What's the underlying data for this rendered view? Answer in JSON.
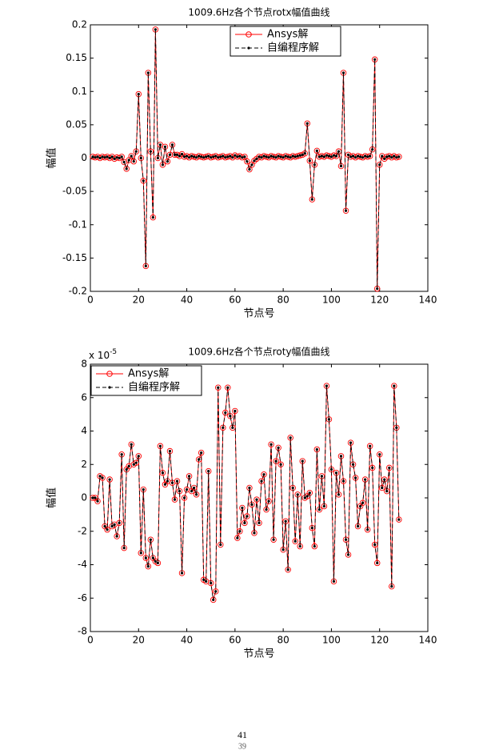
{
  "chart_data": [
    {
      "type": "line",
      "title": "1009.6Hz各个节点rotx幅值曲线",
      "x_label": "节点号",
      "y_label": "幅值",
      "x": [
        1,
        2,
        3,
        4,
        5,
        6,
        7,
        8,
        9,
        10,
        11,
        12,
        13,
        14,
        15,
        16,
        17,
        18,
        19,
        20,
        21,
        22,
        23,
        24,
        25,
        26,
        27,
        28,
        29,
        30,
        31,
        32,
        33,
        34,
        35,
        36,
        37,
        38,
        39,
        40,
        41,
        42,
        43,
        44,
        45,
        46,
        47,
        48,
        49,
        50,
        51,
        52,
        53,
        54,
        55,
        56,
        57,
        58,
        59,
        60,
        61,
        62,
        63,
        64,
        65,
        66,
        67,
        68,
        69,
        70,
        71,
        72,
        73,
        74,
        75,
        76,
        77,
        78,
        79,
        80,
        81,
        82,
        83,
        84,
        85,
        86,
        87,
        88,
        89,
        90,
        91,
        92,
        93,
        94,
        95,
        96,
        97,
        98,
        99,
        100,
        101,
        102,
        103,
        104,
        105,
        106,
        107,
        108,
        109,
        110,
        111,
        112,
        113,
        114,
        115,
        116,
        117,
        118,
        119,
        120,
        121,
        122,
        123,
        124,
        125,
        126,
        127,
        128
      ],
      "series": [
        {
          "name": "Ansys解",
          "color": "#ff0000",
          "style": "solid",
          "marker": "circle",
          "values": [
            0.002,
            0.001,
            0.002,
            0,
            0.002,
            0.001,
            0.002,
            0,
            0.002,
            -0.001,
            0.001,
            0,
            0.002,
            -0.006,
            -0.016,
            -0.003,
            0.003,
            -0.005,
            0.01,
            0.096,
            0,
            -0.034,
            -0.162,
            0.128,
            0.01,
            -0.089,
            0.193,
            0,
            0.02,
            -0.01,
            0.017,
            -0.005,
            0.005,
            0.02,
            0.005,
            0.005,
            0.003,
            0.006,
            0.002,
            0.003,
            0.001,
            0.003,
            0.002,
            0.001,
            0.003,
            0.002,
            0.001,
            0.002,
            0.003,
            0.001,
            0.002,
            0.003,
            0.001,
            0.002,
            0.003,
            0.001,
            0.002,
            0.003,
            0.001,
            0.004,
            0.002,
            0.003,
            0.001,
            0.002,
            -0.005,
            -0.017,
            -0.01,
            -0.004,
            -0.001,
            0.002,
            0.001,
            0.003,
            0.002,
            0.001,
            0.003,
            0.002,
            0.001,
            0.003,
            0.002,
            0.001,
            0.003,
            0.002,
            0.001,
            0.003,
            0.002,
            0.003,
            0.004,
            0.005,
            0.007,
            0.052,
            -0.004,
            -0.062,
            -0.01,
            0.011,
            0.002,
            0.003,
            0.002,
            0.004,
            0.003,
            0.002,
            0.004,
            0.003,
            0.01,
            -0.012,
            0.128,
            -0.079,
            0.005,
            0.002,
            0.003,
            0.001,
            0.003,
            0.002,
            0.001,
            0.003,
            0.002,
            0.003,
            0.013,
            0.148,
            -0.196,
            -0.01,
            0.003,
            -0.001,
            0.002,
            0.003,
            0.001,
            0.003,
            0.001,
            0.002
          ]
        },
        {
          "name": "自编程序解",
          "color": "#000000",
          "style": "dashed",
          "marker": "dot",
          "values": [
            0.002,
            0.001,
            0.002,
            0,
            0.002,
            0.001,
            0.002,
            0,
            0.002,
            -0.001,
            0.001,
            0,
            0.002,
            -0.006,
            -0.016,
            -0.003,
            0.003,
            -0.005,
            0.01,
            0.096,
            0,
            -0.034,
            -0.162,
            0.128,
            0.01,
            -0.089,
            0.193,
            0,
            0.02,
            -0.01,
            0.017,
            -0.005,
            0.005,
            0.02,
            0.005,
            0.005,
            0.003,
            0.006,
            0.002,
            0.003,
            0.001,
            0.003,
            0.002,
            0.001,
            0.003,
            0.002,
            0.001,
            0.002,
            0.003,
            0.001,
            0.002,
            0.003,
            0.001,
            0.002,
            0.003,
            0.001,
            0.002,
            0.003,
            0.001,
            0.004,
            0.002,
            0.003,
            0.001,
            0.002,
            -0.005,
            -0.017,
            -0.01,
            -0.004,
            -0.001,
            0.002,
            0.001,
            0.003,
            0.002,
            0.001,
            0.003,
            0.002,
            0.001,
            0.003,
            0.002,
            0.001,
            0.003,
            0.002,
            0.001,
            0.003,
            0.002,
            0.003,
            0.004,
            0.005,
            0.007,
            0.052,
            -0.004,
            -0.062,
            -0.01,
            0.011,
            0.002,
            0.003,
            0.002,
            0.004,
            0.003,
            0.002,
            0.004,
            0.003,
            0.01,
            -0.012,
            0.128,
            -0.079,
            0.005,
            0.002,
            0.003,
            0.001,
            0.003,
            0.002,
            0.001,
            0.003,
            0.002,
            0.003,
            0.013,
            0.148,
            -0.196,
            -0.01,
            0.003,
            -0.001,
            0.002,
            0.003,
            0.001,
            0.003,
            0.001,
            0.002
          ]
        }
      ],
      "xlim": [
        0,
        140
      ],
      "xticks": [
        0,
        20,
        40,
        60,
        80,
        100,
        120,
        140
      ],
      "ylim": [
        -0.2,
        0.2
      ],
      "yticks": [
        -0.2,
        -0.15,
        -0.1,
        -0.05,
        0,
        0.05,
        0.1,
        0.15,
        0.2
      ],
      "legend": "north",
      "grid": false
    },
    {
      "type": "line",
      "title": "1009.6Hz各个节点roty幅值曲线",
      "x_label": "节点号",
      "y_label": "幅值",
      "y_exponent_label": {
        "base": "x 10",
        "exponent": "-5"
      },
      "x": [
        1,
        2,
        3,
        4,
        5,
        6,
        7,
        8,
        9,
        10,
        11,
        12,
        13,
        14,
        15,
        16,
        17,
        18,
        19,
        20,
        21,
        22,
        23,
        24,
        25,
        26,
        27,
        28,
        29,
        30,
        31,
        32,
        33,
        34,
        35,
        36,
        37,
        38,
        39,
        40,
        41,
        42,
        43,
        44,
        45,
        46,
        47,
        48,
        49,
        50,
        51,
        52,
        53,
        54,
        55,
        56,
        57,
        58,
        59,
        60,
        61,
        62,
        63,
        64,
        65,
        66,
        67,
        68,
        69,
        70,
        71,
        72,
        73,
        74,
        75,
        76,
        77,
        78,
        79,
        80,
        81,
        82,
        83,
        84,
        85,
        86,
        87,
        88,
        89,
        90,
        91,
        92,
        93,
        94,
        95,
        96,
        97,
        98,
        99,
        100,
        101,
        102,
        103,
        104,
        105,
        106,
        107,
        108,
        109,
        110,
        111,
        112,
        113,
        114,
        115,
        116,
        117,
        118,
        119,
        120,
        121,
        122,
        123,
        124,
        125,
        126,
        127,
        128
      ],
      "series": [
        {
          "name": "Ansys解",
          "color": "#ff0000",
          "style": "solid",
          "marker": "circle",
          "values": [
            0,
            0,
            -0.2,
            1.3,
            1.2,
            -1.7,
            -1.9,
            1.1,
            -1.7,
            -1.6,
            -2.3,
            -1.5,
            2.6,
            -3,
            1.7,
            1.9,
            3.2,
            2,
            2.1,
            2.5,
            -3.3,
            0.5,
            -3.6,
            -4.1,
            -2.5,
            -3.6,
            -3.8,
            -3.9,
            3.1,
            1.5,
            0.8,
            1,
            2.8,
            0.9,
            -0.1,
            1,
            0.4,
            -4.5,
            0,
            0.5,
            1.3,
            0.4,
            0.6,
            0.2,
            2.3,
            2.7,
            -4.9,
            -5,
            1.6,
            -5.1,
            -6.1,
            -5.6,
            6.6,
            -2.8,
            4.2,
            5.1,
            6.6,
            4.9,
            4.2,
            5.2,
            -2.4,
            -2,
            -0.6,
            -1.5,
            -1.1,
            0.6,
            -0.4,
            -2.1,
            -0.1,
            -1.5,
            1,
            1.4,
            -0.7,
            -0.2,
            3.2,
            -2.5,
            2.2,
            3,
            2,
            -3.1,
            -1.4,
            -4.3,
            3.6,
            0.6,
            -2.6,
            0.2,
            -2.9,
            2.2,
            0,
            0.1,
            0.3,
            -1.8,
            -2.9,
            2.9,
            -0.7,
            1.3,
            -0.5,
            6.7,
            4.7,
            1.7,
            -5,
            1.5,
            0.2,
            2.5,
            1,
            -2.5,
            -3.4,
            3.3,
            2,
            1.2,
            -1.7,
            -0.5,
            -0.3,
            1.1,
            -1.9,
            3.1,
            1.8,
            -2.8,
            -3.9,
            2.6,
            0.6,
            1.1,
            0.4,
            1.8,
            -5.3,
            6.7,
            4.2,
            -1.3
          ]
        },
        {
          "name": "自编程序解",
          "color": "#000000",
          "style": "dashed",
          "marker": "dot",
          "values": [
            0,
            0,
            -0.2,
            1.3,
            1.2,
            -1.7,
            -1.9,
            1.1,
            -1.7,
            -1.6,
            -2.3,
            -1.5,
            2.6,
            -3,
            1.7,
            1.9,
            3.2,
            2,
            2.1,
            2.5,
            -3.3,
            0.5,
            -3.6,
            -4.1,
            -2.5,
            -3.6,
            -3.8,
            -3.9,
            3.1,
            1.5,
            0.8,
            1,
            2.8,
            0.9,
            -0.1,
            1,
            0.4,
            -4.5,
            0,
            0.5,
            1.3,
            0.4,
            0.6,
            0.2,
            2.3,
            2.7,
            -4.9,
            -5,
            1.6,
            -5.1,
            -6.1,
            -5.6,
            6.6,
            -2.8,
            4.2,
            5.1,
            6.6,
            4.9,
            4.2,
            5.2,
            -2.4,
            -2,
            -0.6,
            -1.5,
            -1.1,
            0.6,
            -0.4,
            -2.1,
            -0.1,
            -1.5,
            1,
            1.4,
            -0.7,
            -0.2,
            3.2,
            -2.5,
            2.2,
            3,
            2,
            -3.1,
            -1.4,
            -4.3,
            3.6,
            0.6,
            -2.6,
            0.2,
            -2.9,
            2.2,
            0,
            0.1,
            0.3,
            -1.8,
            -2.9,
            2.9,
            -0.7,
            1.3,
            -0.5,
            6.7,
            4.7,
            1.7,
            -5,
            1.5,
            0.2,
            2.5,
            1,
            -2.5,
            -3.4,
            3.3,
            2,
            1.2,
            -1.7,
            -0.5,
            -0.3,
            1.1,
            -1.9,
            3.1,
            1.8,
            -2.8,
            -3.9,
            2.6,
            0.6,
            1.1,
            0.4,
            1.8,
            -5.3,
            6.7,
            4.2,
            -1.3
          ]
        }
      ],
      "xlim": [
        0,
        140
      ],
      "xticks": [
        0,
        20,
        40,
        60,
        80,
        100,
        120,
        140
      ],
      "ylim": [
        -8,
        8
      ],
      "yticks": [
        -8,
        -6,
        -4,
        -2,
        0,
        2,
        4,
        6,
        8
      ],
      "legend": "northwest",
      "grid": false
    }
  ],
  "footer": {
    "page_number": "41",
    "page_number_below": "39"
  }
}
